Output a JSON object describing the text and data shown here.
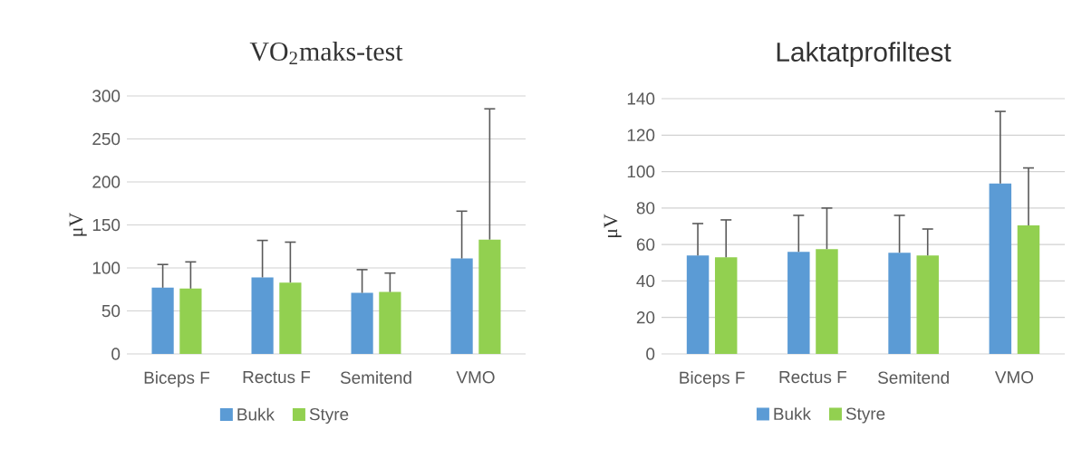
{
  "chart_data": [
    {
      "type": "bar",
      "title": "VO$_{2}$maks-test",
      "ylabel": "μV",
      "categories": [
        "Biceps F",
        "Rectus F",
        "Semitend",
        "VMO"
      ],
      "series": [
        {
          "name": "Bukk",
          "color": "#5b9bd5",
          "values": [
            77,
            89,
            71,
            111
          ],
          "errors": [
            [
              77,
              104
            ],
            [
              89,
              132
            ],
            [
              71,
              98
            ],
            [
              111,
              166
            ]
          ]
        },
        {
          "name": "Styre",
          "color": "#92d050",
          "values": [
            76,
            83,
            72,
            133
          ],
          "errors": [
            [
              76,
              107
            ],
            [
              83,
              130
            ],
            [
              72,
              94
            ],
            [
              133,
              285
            ]
          ]
        }
      ],
      "ylim": [
        0,
        300
      ],
      "yticks": [
        0,
        50,
        100,
        150,
        200,
        250,
        300
      ],
      "grid": "y",
      "legend": "bottom"
    },
    {
      "type": "bar",
      "title": "Laktatprofiltest",
      "ylabel": "μV",
      "categories": [
        "Biceps F",
        "Rectus F",
        "Semitend",
        "VMO"
      ],
      "series": [
        {
          "name": "Bukk",
          "color": "#5b9bd5",
          "values": [
            54,
            56,
            55.5,
            93.5
          ],
          "errors": [
            [
              54,
              71.5
            ],
            [
              56,
              76
            ],
            [
              55.5,
              76
            ],
            [
              93.5,
              133
            ]
          ]
        },
        {
          "name": "Styre",
          "color": "#92d050",
          "values": [
            53,
            57.5,
            54,
            70.5
          ],
          "errors": [
            [
              53,
              73.5
            ],
            [
              57.5,
              80
            ],
            [
              54,
              68.5
            ],
            [
              70.5,
              102
            ]
          ]
        }
      ],
      "ylim": [
        0,
        140
      ],
      "yticks": [
        0,
        20,
        40,
        60,
        80,
        100,
        120,
        140
      ],
      "grid": "y",
      "legend": "bottom"
    }
  ]
}
